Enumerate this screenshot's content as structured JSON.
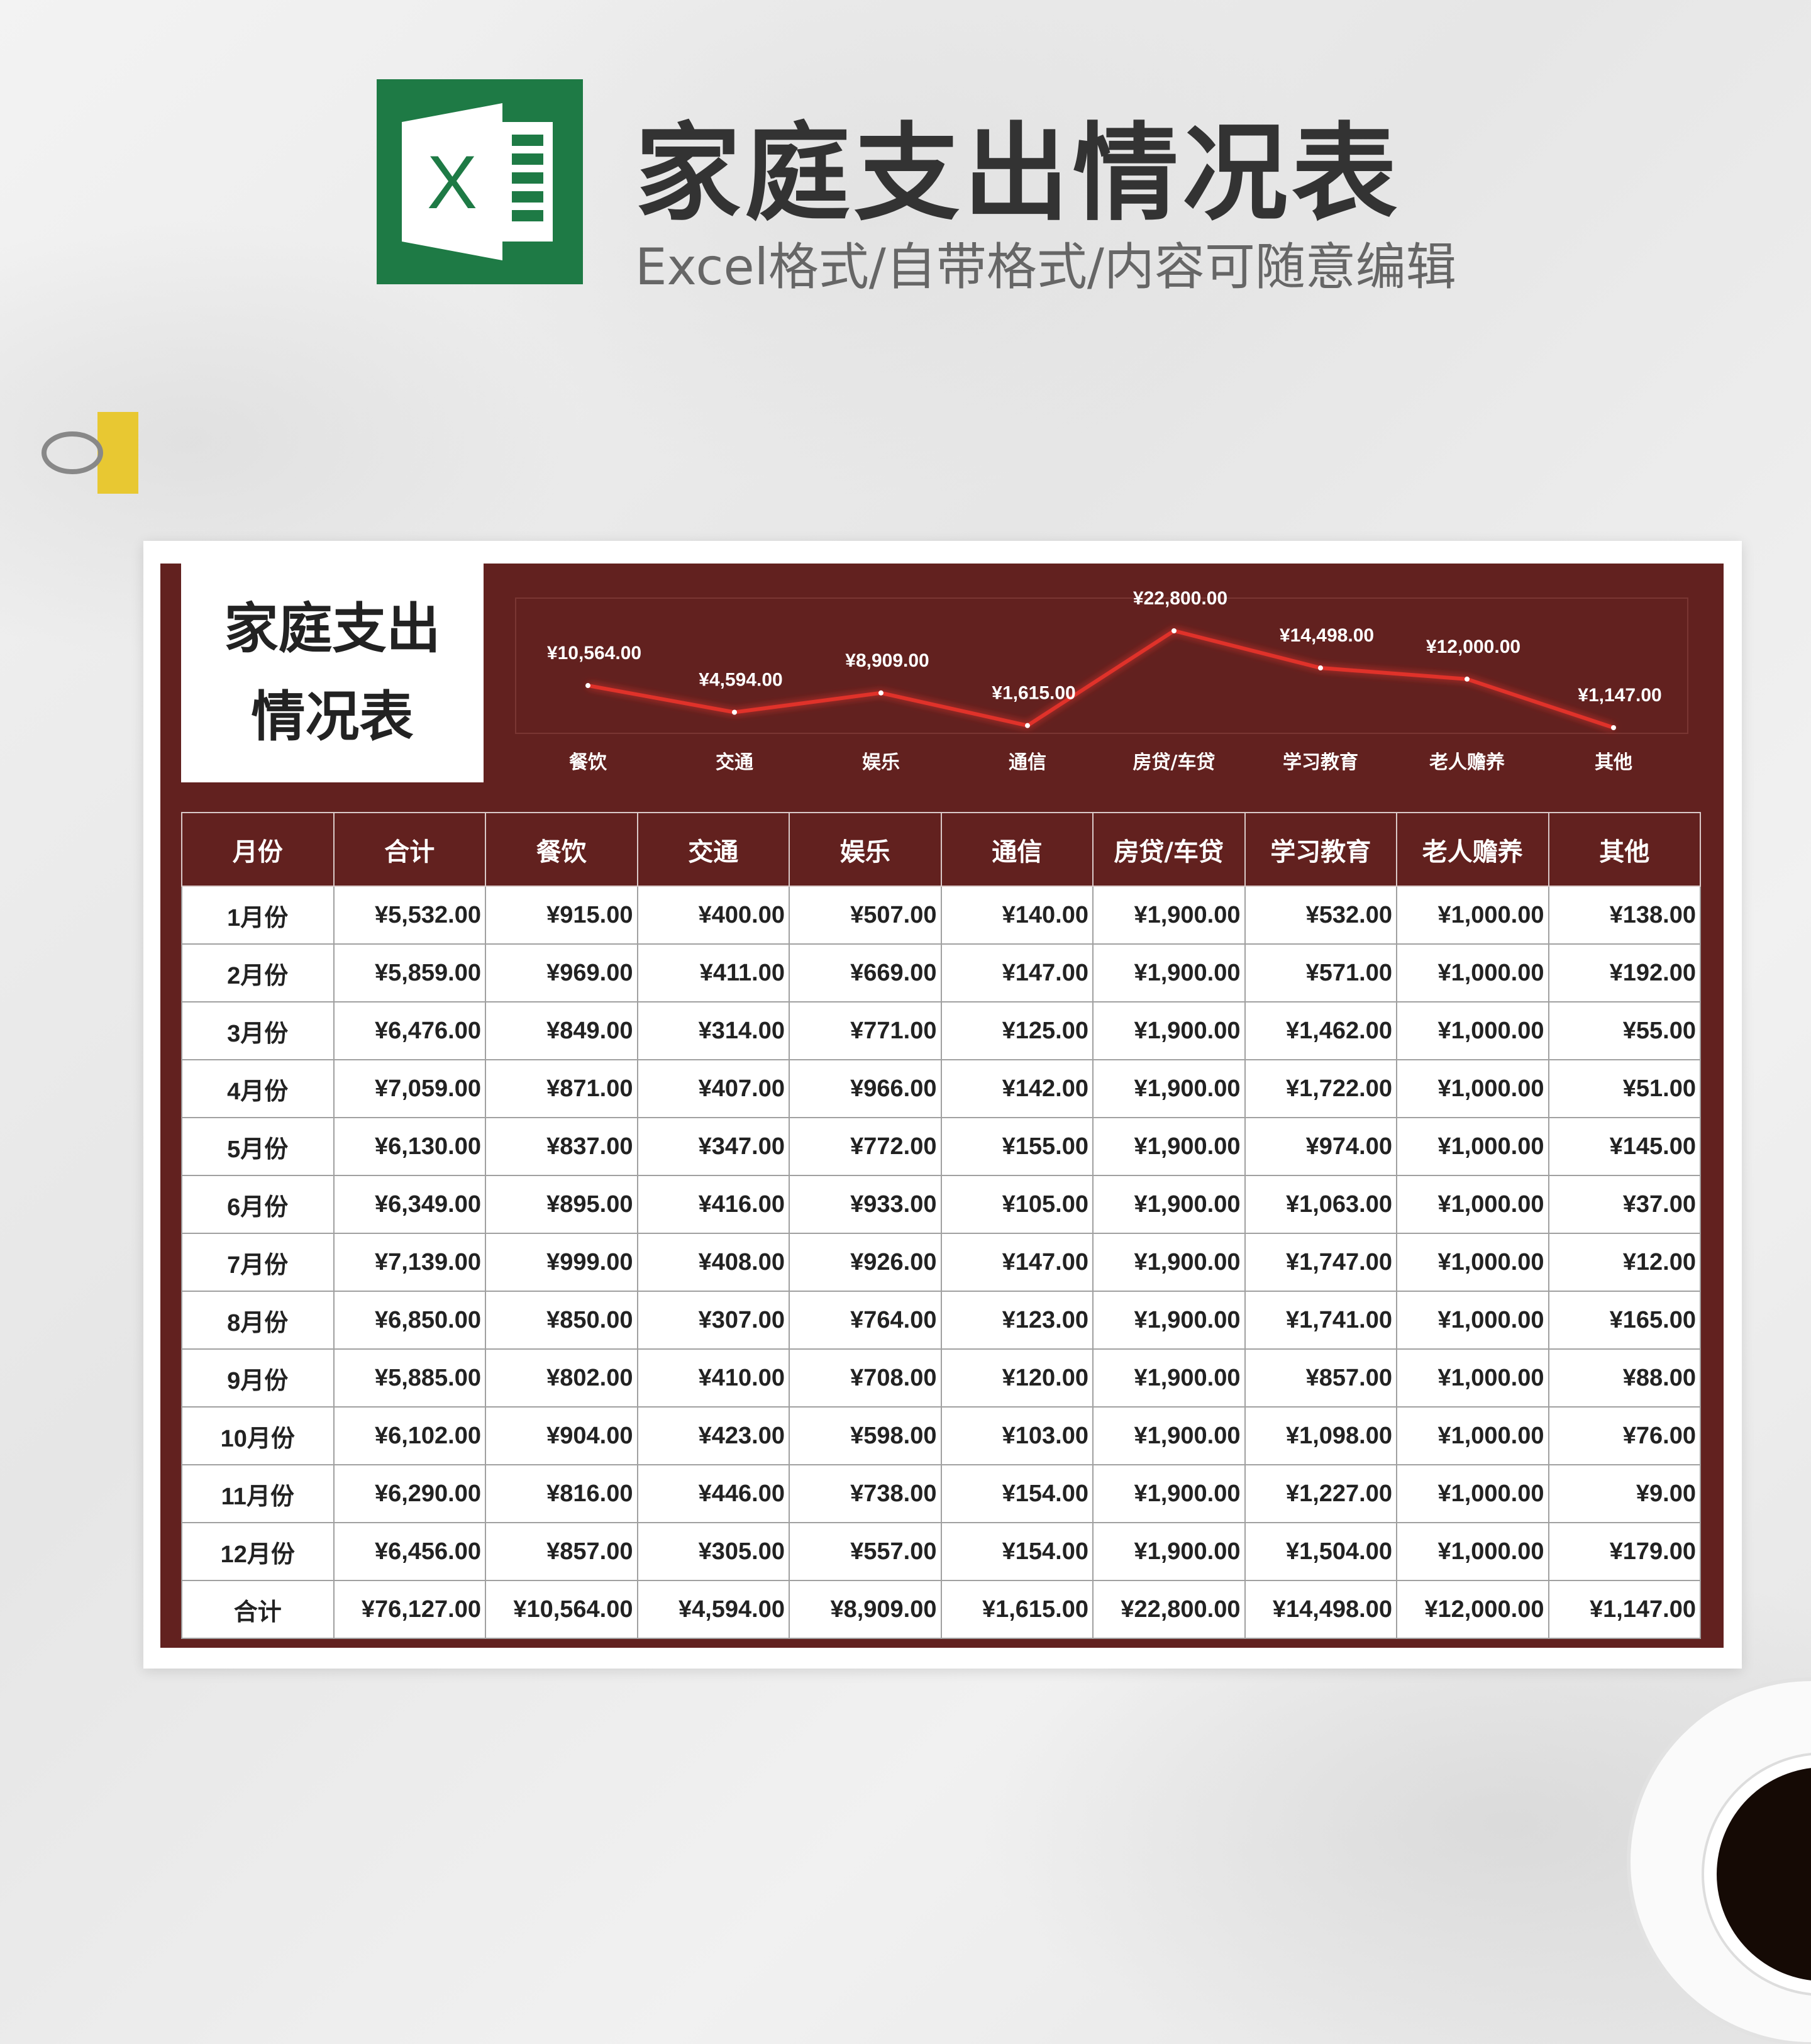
{
  "header": {
    "title": "家庭支出情况表",
    "subtitle": "Excel格式/自带格式/内容可随意编辑",
    "logo_letter": "X"
  },
  "card": {
    "title_line1": "家庭支出",
    "title_line2": "情况表"
  },
  "colors": {
    "panel": "#62211f",
    "line": "#e0302a",
    "logo": "#1e7a45"
  },
  "chart_data": {
    "type": "line",
    "categories": [
      "餐饮",
      "交通",
      "娱乐",
      "通信",
      "房贷/车贷",
      "学习教育",
      "老人赡养",
      "其他"
    ],
    "values": [
      10564,
      4594,
      8909,
      1615,
      22800,
      14498,
      12000,
      1147
    ],
    "labels": [
      "¥10,564.00",
      "¥4,594.00",
      "¥8,909.00",
      "¥1,615.00",
      "¥22,800.00",
      "¥14,498.00",
      "¥12,000.00",
      "¥1,147.00"
    ],
    "grid": false
  },
  "table": {
    "headers": [
      "月份",
      "合计",
      "餐饮",
      "交通",
      "娱乐",
      "通信",
      "房贷/车贷",
      "学习教育",
      "老人赡养",
      "其他"
    ],
    "rows": [
      [
        "1月份",
        "¥5,532.00",
        "¥915.00",
        "¥400.00",
        "¥507.00",
        "¥140.00",
        "¥1,900.00",
        "¥532.00",
        "¥1,000.00",
        "¥138.00"
      ],
      [
        "2月份",
        "¥5,859.00",
        "¥969.00",
        "¥411.00",
        "¥669.00",
        "¥147.00",
        "¥1,900.00",
        "¥571.00",
        "¥1,000.00",
        "¥192.00"
      ],
      [
        "3月份",
        "¥6,476.00",
        "¥849.00",
        "¥314.00",
        "¥771.00",
        "¥125.00",
        "¥1,900.00",
        "¥1,462.00",
        "¥1,000.00",
        "¥55.00"
      ],
      [
        "4月份",
        "¥7,059.00",
        "¥871.00",
        "¥407.00",
        "¥966.00",
        "¥142.00",
        "¥1,900.00",
        "¥1,722.00",
        "¥1,000.00",
        "¥51.00"
      ],
      [
        "5月份",
        "¥6,130.00",
        "¥837.00",
        "¥347.00",
        "¥772.00",
        "¥155.00",
        "¥1,900.00",
        "¥974.00",
        "¥1,000.00",
        "¥145.00"
      ],
      [
        "6月份",
        "¥6,349.00",
        "¥895.00",
        "¥416.00",
        "¥933.00",
        "¥105.00",
        "¥1,900.00",
        "¥1,063.00",
        "¥1,000.00",
        "¥37.00"
      ],
      [
        "7月份",
        "¥7,139.00",
        "¥999.00",
        "¥408.00",
        "¥926.00",
        "¥147.00",
        "¥1,900.00",
        "¥1,747.00",
        "¥1,000.00",
        "¥12.00"
      ],
      [
        "8月份",
        "¥6,850.00",
        "¥850.00",
        "¥307.00",
        "¥764.00",
        "¥123.00",
        "¥1,900.00",
        "¥1,741.00",
        "¥1,000.00",
        "¥165.00"
      ],
      [
        "9月份",
        "¥5,885.00",
        "¥802.00",
        "¥410.00",
        "¥708.00",
        "¥120.00",
        "¥1,900.00",
        "¥857.00",
        "¥1,000.00",
        "¥88.00"
      ],
      [
        "10月份",
        "¥6,102.00",
        "¥904.00",
        "¥423.00",
        "¥598.00",
        "¥103.00",
        "¥1,900.00",
        "¥1,098.00",
        "¥1,000.00",
        "¥76.00"
      ],
      [
        "11月份",
        "¥6,290.00",
        "¥816.00",
        "¥446.00",
        "¥738.00",
        "¥154.00",
        "¥1,900.00",
        "¥1,227.00",
        "¥1,000.00",
        "¥9.00"
      ],
      [
        "12月份",
        "¥6,456.00",
        "¥857.00",
        "¥305.00",
        "¥557.00",
        "¥154.00",
        "¥1,900.00",
        "¥1,504.00",
        "¥1,000.00",
        "¥179.00"
      ],
      [
        "合计",
        "¥76,127.00",
        "¥10,564.00",
        "¥4,594.00",
        "¥8,909.00",
        "¥1,615.00",
        "¥22,800.00",
        "¥14,498.00",
        "¥12,000.00",
        "¥1,147.00"
      ]
    ]
  }
}
